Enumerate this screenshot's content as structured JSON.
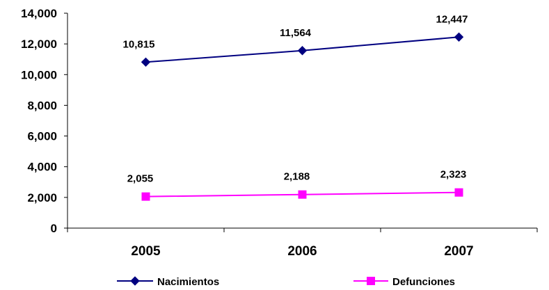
{
  "chart_data": {
    "type": "line",
    "categories": [
      "2005",
      "2006",
      "2007"
    ],
    "series": [
      {
        "name": "Nacimientos",
        "values": [
          10815,
          11564,
          12447
        ],
        "labels": [
          "10,815",
          "11,564",
          "12,447"
        ],
        "color": "#000080",
        "marker": "diamond"
      },
      {
        "name": "Defunciones",
        "values": [
          2055,
          2188,
          2323
        ],
        "labels": [
          "2,055",
          "2,188",
          "2,323"
        ],
        "color": "#FF00FF",
        "marker": "square"
      }
    ],
    "ylim": [
      0,
      14000
    ],
    "y_ticks": [
      0,
      2000,
      4000,
      6000,
      8000,
      10000,
      12000,
      14000
    ],
    "y_tick_labels": [
      "0",
      "2,000",
      "4,000",
      "6,000",
      "8,000",
      "10,000",
      "12,000",
      "14,000"
    ],
    "title": "",
    "xlabel": "",
    "ylabel": "",
    "grid": false,
    "legend_position": "bottom"
  }
}
